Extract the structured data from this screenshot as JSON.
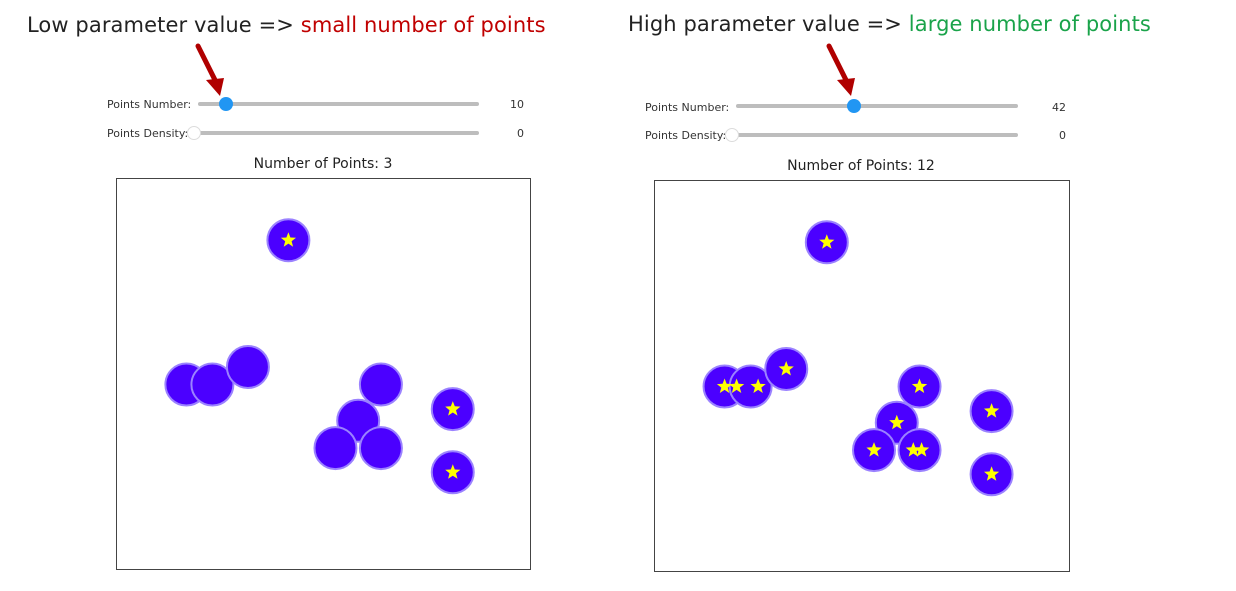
{
  "panels": [
    {
      "caption_prefix": "Low parameter value => ",
      "caption_highlight": "small number of points",
      "highlight_color": "#c00000",
      "sliders": [
        {
          "label": "Points Number:",
          "value": "10",
          "fraction": 0.1,
          "active": true
        },
        {
          "label": "Points Density:",
          "value": "0",
          "fraction": 0.0,
          "active": false
        }
      ],
      "plot_title": "Number of Points: 3",
      "stars": [
        [
          0.415,
          0.157
        ],
        [
          0.813,
          0.59
        ],
        [
          0.813,
          0.752
        ]
      ]
    },
    {
      "caption_prefix": "High parameter value => ",
      "caption_highlight": "large number of points",
      "highlight_color": "#1aa34a",
      "sliders": [
        {
          "label": "Points Number:",
          "value": "42",
          "fraction": 0.42,
          "active": true
        },
        {
          "label": "Points Density:",
          "value": "0",
          "fraction": 0.0,
          "active": false
        }
      ],
      "plot_title": "Number of Points: 12",
      "stars": [
        [
          0.415,
          0.157
        ],
        [
          0.168,
          0.527
        ],
        [
          0.197,
          0.527
        ],
        [
          0.249,
          0.527
        ],
        [
          0.317,
          0.482
        ],
        [
          0.639,
          0.527
        ],
        [
          0.584,
          0.62
        ],
        [
          0.529,
          0.69
        ],
        [
          0.624,
          0.69
        ],
        [
          0.644,
          0.69
        ],
        [
          0.813,
          0.59
        ],
        [
          0.813,
          0.752
        ]
      ]
    }
  ],
  "blobs": [
    [
      0.415,
      0.157
    ],
    [
      0.168,
      0.527
    ],
    [
      0.231,
      0.527
    ],
    [
      0.317,
      0.482
    ],
    [
      0.639,
      0.527
    ],
    [
      0.584,
      0.62
    ],
    [
      0.529,
      0.69
    ],
    [
      0.639,
      0.69
    ],
    [
      0.813,
      0.59
    ],
    [
      0.813,
      0.752
    ]
  ],
  "colors": {
    "blob_fill": "#4b00ff",
    "blob_edge": "#9b82ff",
    "star": "#ffff00",
    "thumb_active": "#2196f3",
    "track": "#bdbdbd"
  }
}
